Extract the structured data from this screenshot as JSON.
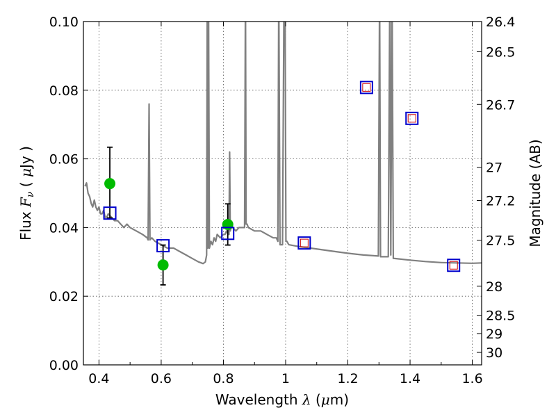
{
  "chart_data": {
    "type": "scatter",
    "title": "",
    "xlabel": "Wavelength",
    "xlabel_symbol": "λ",
    "xlabel_unit_open": "(",
    "xlabel_unit_mu": "μ",
    "xlabel_unit_rest": "m)",
    "ylabel": "Flux",
    "ylabel_symbol": "F",
    "ylabel_subscript": "ν",
    "ylabel_unit_open": "(",
    "ylabel_unit_mu": "μ",
    "ylabel_unit_rest": "Jy )",
    "ylabel_right": "Magnitude (AB)",
    "xlim": [
      0.35,
      1.63
    ],
    "ylim": [
      0.0,
      0.1
    ],
    "grid": true,
    "x_ticks": [
      0.4,
      0.6,
      0.8,
      1.0,
      1.2,
      1.4,
      1.6
    ],
    "x_tick_labels": [
      "0.4",
      "0.6",
      "0.8",
      "1",
      "1.2",
      "1.4",
      "1.6"
    ],
    "y_ticks": [
      0.0,
      0.02,
      0.04,
      0.06,
      0.08,
      0.1
    ],
    "y_tick_labels": [
      "0.00",
      "0.02",
      "0.04",
      "0.06",
      "0.08",
      "0.10"
    ],
    "right_ticks": [
      26.4,
      26.5,
      26.7,
      27,
      27.2,
      27.5,
      28,
      28.5,
      29,
      30
    ],
    "right_tick_labels": [
      "26.4",
      "26.5",
      "26.7",
      "27",
      "27.2",
      "27.5",
      "28",
      "28.5",
      "29",
      "30"
    ],
    "colors": {
      "spectrum": "#808080",
      "observed": "#00bb00",
      "errorbar": "#000000",
      "model_box": "#0000cc",
      "model_inner": "#cc0000",
      "grid": "#555555"
    },
    "series": [
      {
        "name": "model spectrum",
        "kind": "line",
        "x": [
          0.355,
          0.36,
          0.365,
          0.37,
          0.375,
          0.38,
          0.385,
          0.39,
          0.395,
          0.4,
          0.405,
          0.41,
          0.415,
          0.42,
          0.425,
          0.43,
          0.44,
          0.45,
          0.46,
          0.47,
          0.48,
          0.49,
          0.5,
          0.52,
          0.54,
          0.555,
          0.558,
          0.561,
          0.564,
          0.57,
          0.58,
          0.6,
          0.62,
          0.64,
          0.66,
          0.68,
          0.7,
          0.72,
          0.735,
          0.742,
          0.746,
          0.748,
          0.75,
          0.752,
          0.755,
          0.76,
          0.765,
          0.77,
          0.775,
          0.78,
          0.79,
          0.8,
          0.805,
          0.81,
          0.815,
          0.818,
          0.82,
          0.822,
          0.825,
          0.83,
          0.84,
          0.85,
          0.86,
          0.868,
          0.871,
          0.873,
          0.876,
          0.88,
          0.9,
          0.92,
          0.94,
          0.96,
          0.97,
          0.975,
          0.978,
          0.982,
          0.985,
          0.99,
          0.995,
          0.998,
          1.001,
          1.004,
          1.01,
          1.04,
          1.08,
          1.12,
          1.16,
          1.2,
          1.25,
          1.298,
          1.302,
          1.305,
          1.31,
          1.33,
          1.335,
          1.338,
          1.342,
          1.346,
          1.35,
          1.4,
          1.45,
          1.5,
          1.55,
          1.6,
          1.63
        ],
        "y": [
          0.052,
          0.053,
          0.05,
          0.049,
          0.047,
          0.046,
          0.048,
          0.046,
          0.045,
          0.046,
          0.044,
          0.044,
          0.045,
          0.043,
          0.043,
          0.044,
          0.043,
          0.042,
          0.042,
          0.041,
          0.04,
          0.041,
          0.04,
          0.039,
          0.038,
          0.037,
          0.0364,
          0.076,
          0.0364,
          0.037,
          0.036,
          0.035,
          0.034,
          0.034,
          0.033,
          0.032,
          0.031,
          0.03,
          0.0295,
          0.03,
          0.032,
          0.11,
          0.034,
          0.11,
          0.034,
          0.036,
          0.035,
          0.037,
          0.036,
          0.038,
          0.037,
          0.038,
          0.038,
          0.039,
          0.038,
          0.038,
          0.062,
          0.039,
          0.04,
          0.04,
          0.039,
          0.04,
          0.04,
          0.04,
          0.11,
          0.041,
          0.041,
          0.04,
          0.039,
          0.039,
          0.038,
          0.037,
          0.037,
          0.036,
          0.11,
          0.035,
          0.035,
          0.035,
          0.11,
          0.11,
          0.036,
          0.036,
          0.035,
          0.0345,
          0.034,
          0.0335,
          0.033,
          0.0325,
          0.032,
          0.0317,
          0.11,
          0.0315,
          0.0315,
          0.0315,
          0.11,
          0.032,
          0.11,
          0.031,
          0.031,
          0.0305,
          0.0301,
          0.0298,
          0.0297,
          0.0296,
          0.0297
        ]
      },
      {
        "name": "observed photometry",
        "kind": "points",
        "x": [
          0.435,
          0.606,
          0.814
        ],
        "y": [
          0.0528,
          0.0291,
          0.0409
        ],
        "yerr_low": [
          0.0428,
          0.0233,
          0.0349
        ],
        "yerr_high": [
          0.0634,
          0.0349,
          0.0469
        ]
      },
      {
        "name": "model photometry",
        "kind": "squares",
        "x": [
          0.435,
          0.606,
          0.814,
          1.06,
          1.26,
          1.406,
          1.54
        ],
        "y": [
          0.0442,
          0.0347,
          0.0383,
          0.0355,
          0.0808,
          0.0718,
          0.029
        ],
        "inner": [
          false,
          false,
          false,
          true,
          true,
          true,
          true
        ]
      }
    ]
  }
}
